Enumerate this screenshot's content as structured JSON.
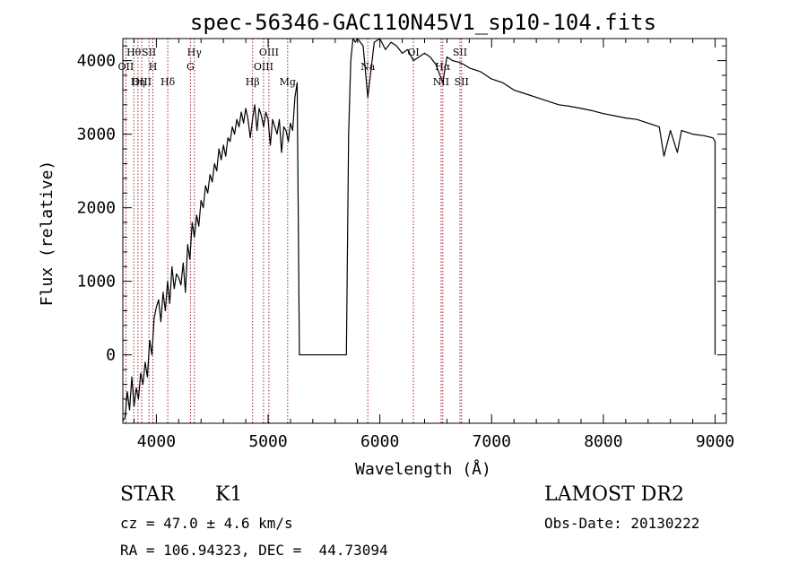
{
  "chart_data": {
    "type": "line",
    "title": "spec-56346-GAC110N45V1_sp10-104.fits",
    "xlabel": "Wavelength (Å)",
    "ylabel": "Flux (relative)",
    "xlim": [
      3700,
      9100
    ],
    "ylim": [
      -930,
      4300
    ],
    "x_ticks": [
      4000,
      5000,
      6000,
      7000,
      8000,
      9000
    ],
    "x_tick_labels": [
      "4000",
      "5000",
      "6000",
      "7000",
      "8000",
      "9000"
    ],
    "y_ticks": [
      0,
      1000,
      2000,
      3000,
      4000
    ],
    "y_tick_labels": [
      "0",
      "1000",
      "2000",
      "3000",
      "4000"
    ],
    "grid": false,
    "line_color": "#000000",
    "marker_color": "#a0262a",
    "series": [
      {
        "x": [
          3700,
          3720,
          3740,
          3760,
          3780,
          3800,
          3820,
          3840,
          3860,
          3880,
          3900,
          3920,
          3940,
          3960,
          3980,
          4000,
          4020,
          4040,
          4060,
          4080,
          4100,
          4120,
          4140,
          4160,
          4180,
          4200,
          4220,
          4240,
          4260,
          4280,
          4300,
          4320,
          4340,
          4360,
          4380,
          4400,
          4420,
          4440,
          4460,
          4480,
          4500,
          4520,
          4540,
          4560,
          4580,
          4600,
          4620,
          4640,
          4660,
          4680,
          4700,
          4720,
          4740,
          4760,
          4780,
          4800,
          4820,
          4840,
          4860,
          4880,
          4900,
          4920,
          4940,
          4960,
          4980,
          5000,
          5020,
          5040,
          5060,
          5080,
          5100,
          5120,
          5140,
          5160,
          5180,
          5200,
          5220,
          5240,
          5260,
          5280,
          5300,
          5400,
          5500,
          5600,
          5700,
          5720,
          5740,
          5760,
          5780,
          5800,
          5850,
          5892,
          5950,
          6000,
          6050,
          6100,
          6150,
          6200,
          6250,
          6300,
          6350,
          6400,
          6450,
          6500,
          6563,
          6600,
          6650,
          6700,
          6750,
          6800,
          6900,
          7000,
          7100,
          7200,
          7300,
          7400,
          7500,
          7600,
          7700,
          7800,
          7900,
          8000,
          8100,
          8200,
          8300,
          8400,
          8500,
          8542,
          8600,
          8662,
          8700,
          8800,
          8900,
          8980,
          9000,
          9000
        ],
        "y": [
          -900,
          -850,
          -500,
          -750,
          -300,
          -700,
          -450,
          -600,
          -250,
          -400,
          -100,
          -300,
          200,
          0,
          500,
          650,
          750,
          450,
          850,
          600,
          1000,
          700,
          1200,
          900,
          1100,
          1050,
          950,
          1250,
          850,
          1500,
          1300,
          1800,
          1600,
          1900,
          1750,
          2100,
          2000,
          2300,
          2200,
          2450,
          2350,
          2600,
          2500,
          2800,
          2650,
          2850,
          2700,
          2950,
          2900,
          3100,
          3000,
          3200,
          3100,
          3300,
          3150,
          3350,
          3200,
          2950,
          3200,
          3400,
          3050,
          3350,
          3250,
          3100,
          3300,
          3200,
          2850,
          3200,
          3100,
          3000,
          3200,
          2750,
          3100,
          3050,
          2900,
          3150,
          3050,
          3500,
          3700,
          0,
          0,
          0,
          0,
          0,
          0,
          3000,
          4000,
          4300,
          4250,
          4300,
          4200,
          3500,
          4250,
          4300,
          4150,
          4250,
          4200,
          4100,
          4150,
          4000,
          4050,
          4100,
          4050,
          3950,
          3700,
          4050,
          4000,
          3980,
          3950,
          3900,
          3850,
          3750,
          3700,
          3600,
          3550,
          3500,
          3450,
          3400,
          3380,
          3350,
          3320,
          3280,
          3250,
          3220,
          3200,
          3150,
          3100,
          2700,
          3050,
          2750,
          3050,
          3000,
          2980,
          2950,
          2900,
          0
        ]
      }
    ],
    "line_markers": [
      {
        "x": 3798,
        "label": "Hθ",
        "row": 1
      },
      {
        "x": 3727,
        "label": "OII",
        "row": 2
      },
      {
        "x": 3869,
        "label": "OIII",
        "row": 3
      },
      {
        "x": 3835,
        "label": "Hη",
        "row": 3
      },
      {
        "x": 3934,
        "label": "SII",
        "row": 1
      },
      {
        "x": 3969,
        "label": "H",
        "row": 2
      },
      {
        "x": 4102,
        "label": "Hδ",
        "row": 3
      },
      {
        "x": 4340,
        "label": "Hγ",
        "row": 1
      },
      {
        "x": 4305,
        "label": "G",
        "row": 2
      },
      {
        "x": 4861,
        "label": "Hβ",
        "row": 3
      },
      {
        "x": 5007,
        "label": "OIII",
        "row": 1
      },
      {
        "x": 4959,
        "label": "OIII",
        "row": 2
      },
      {
        "x": 5175,
        "label": "Mg",
        "row": 3
      },
      {
        "x": 5892,
        "label": "Na",
        "row": 2
      },
      {
        "x": 6300,
        "label": "OI",
        "row": 1
      },
      {
        "x": 6563,
        "label": "Hα",
        "row": 2
      },
      {
        "x": 6548,
        "label": "NII",
        "row": 3
      },
      {
        "x": 6717,
        "label": "SII",
        "row": 1
      },
      {
        "x": 6731,
        "label": "SII",
        "row": 3
      }
    ]
  },
  "info": {
    "object_class": "STAR",
    "subclass": "K1",
    "redshift": "cz = 47.0 ± 4.6 km/s",
    "coords": "RA = 106.94323, DEC =  44.73094",
    "survey": "LAMOST DR2",
    "obs_date": "Obs-Date: 20130222"
  }
}
